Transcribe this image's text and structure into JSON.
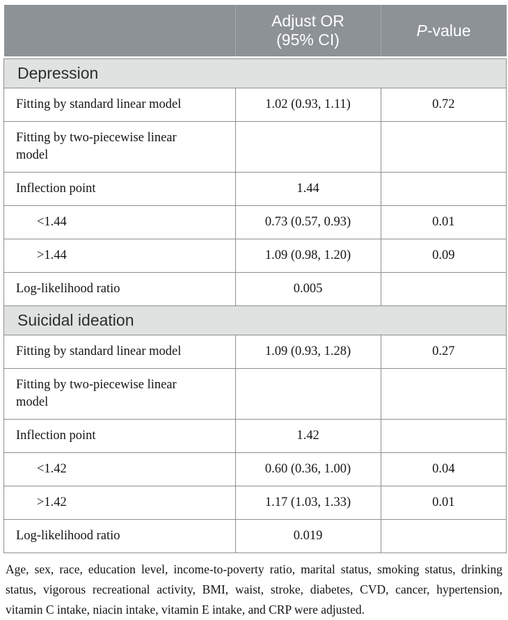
{
  "header": {
    "label_col": "",
    "or_line1": "Adjust OR",
    "or_line2": "(95% CI)",
    "p_italic": "P",
    "p_rest": "-value"
  },
  "sections": [
    {
      "title": "Depression",
      "rows": [
        {
          "label": "Fitting by standard linear model",
          "or": "1.02 (0.93, 1.11)",
          "p": "0.72",
          "indent": false
        },
        {
          "label": "Fitting by two-piecewise linear model",
          "or": "",
          "p": "",
          "indent": false
        },
        {
          "label": "Inflection point",
          "or": "1.44",
          "p": "",
          "indent": false
        },
        {
          "label": "<1.44",
          "or": "0.73 (0.57, 0.93)",
          "p": "0.01",
          "indent": true
        },
        {
          "label": ">1.44",
          "or": "1.09 (0.98, 1.20)",
          "p": "0.09",
          "indent": true
        },
        {
          "label": "Log-likelihood ratio",
          "or": "0.005",
          "p": "",
          "indent": false
        }
      ]
    },
    {
      "title": "Suicidal ideation",
      "rows": [
        {
          "label": "Fitting by standard linear model",
          "or": "1.09 (0.93, 1.28)",
          "p": "0.27",
          "indent": false
        },
        {
          "label": "Fitting by two-piecewise linear model",
          "or": "",
          "p": "",
          "indent": false
        },
        {
          "label": "Inflection point",
          "or": "1.42",
          "p": "",
          "indent": false
        },
        {
          "label": "<1.42",
          "or": "0.60 (0.36, 1.00)",
          "p": "0.04",
          "indent": true
        },
        {
          "label": ">1.42",
          "or": "1.17 (1.03, 1.33)",
          "p": "0.01",
          "indent": true
        },
        {
          "label": "Log-likelihood ratio",
          "or": "0.019",
          "p": "",
          "indent": false
        }
      ]
    }
  ],
  "footnote": "Age, sex, race, education level, income-to-poverty ratio, marital status, smoking status, drinking status, vigorous recreational activity, BMI, waist, stroke, diabetes, CVD, cancer, hypertension, vitamin C intake, niacin intake, vitamin E intake, and CRP were adjusted.",
  "colors": {
    "header_bg": "#8d9297",
    "header_text": "#ffffff",
    "header_divider": "#a6aaad",
    "section_bg": "#e0e2e2",
    "grid_border": "#8e8e8e",
    "body_text": "#161616"
  }
}
